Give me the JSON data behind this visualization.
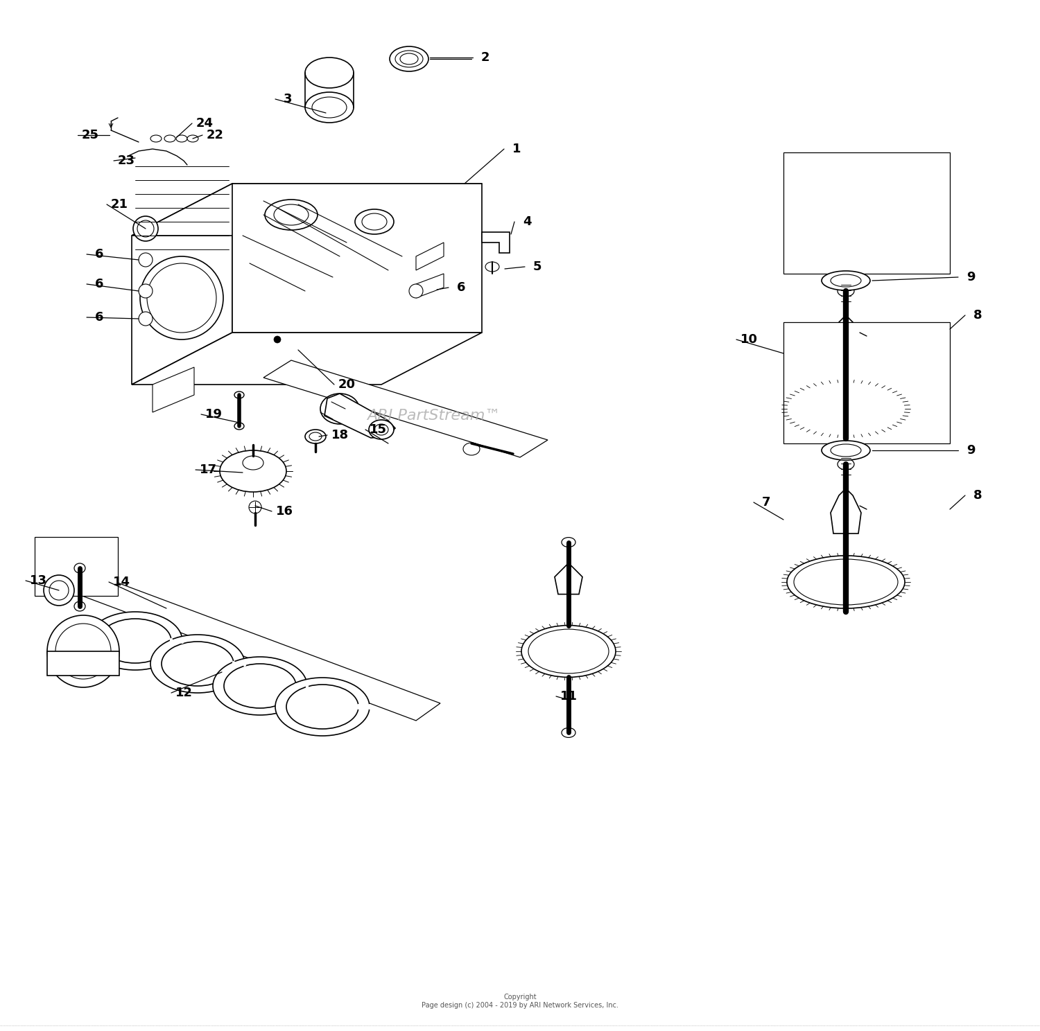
{
  "background_color": "#ffffff",
  "copyright": "Copyright\nPage design (c) 2004 - 2019 by ARI Network Services, Inc.",
  "watermark": "ARI PartStream™",
  "watermark_color": "#aaaaaa",
  "lw_main": 1.2,
  "lw_thin": 0.8,
  "lw_thick": 2.5,
  "label_fontsize": 13,
  "label_fontweight": "bold",
  "line_color": "#000000"
}
